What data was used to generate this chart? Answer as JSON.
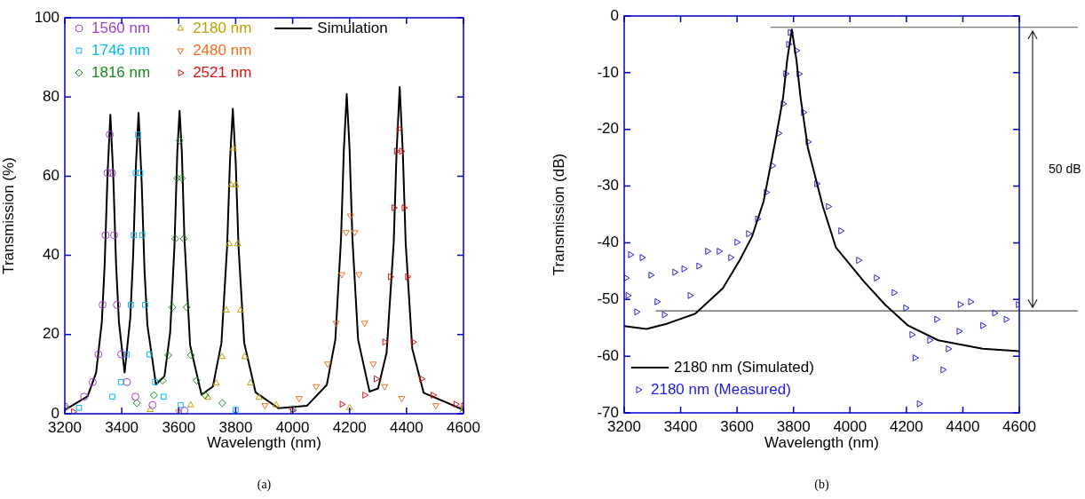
{
  "chart_data": [
    {
      "type": "scatter",
      "xlabel": "Wavelength (nm)",
      "ylabel": "Transmission (%)",
      "xlim": [
        3200,
        4600
      ],
      "ylim": [
        0,
        100
      ],
      "xticks": [
        3200,
        3400,
        3600,
        3800,
        4000,
        4200,
        4400,
        4600
      ],
      "yticks": [
        0,
        20,
        40,
        60,
        80,
        100
      ],
      "legend": "top left",
      "annotations": [
        "(a)"
      ],
      "series": [
        {
          "name": "1560 nm",
          "color": "#a040d0",
          "marker": "circle",
          "x": [
            3200,
            3268,
            3298,
            3318,
            3333,
            3343,
            3350,
            3358,
            3366,
            3373,
            3383,
            3398,
            3418,
            3448,
            3508,
            3620
          ],
          "values": [
            1.8,
            4.3,
            8,
            15,
            27.5,
            45.1,
            60.8,
            70.5,
            60.8,
            45.1,
            27.5,
            15,
            8,
            4.3,
            2.2,
            0.8
          ]
        },
        {
          "name": "1746 nm",
          "color": "#00b8f0",
          "marker": "square",
          "x": [
            3250,
            3367,
            3397,
            3417,
            3432,
            3442,
            3449,
            3457,
            3465,
            3472,
            3482,
            3497,
            3517,
            3547,
            3607,
            3800
          ],
          "values": [
            1.5,
            4.3,
            8,
            15,
            27.5,
            45.1,
            60.8,
            70.5,
            60.8,
            45.1,
            27.5,
            15,
            8,
            4.3,
            2.2,
            1
          ]
        },
        {
          "name": "1816 nm",
          "color": "#1a8a1a",
          "marker": "diamond",
          "x": [
            3200,
            3453,
            3513,
            3543,
            3563,
            3578,
            3588,
            3595,
            3603,
            3611,
            3618,
            3628,
            3643,
            3663,
            3693,
            3753,
            4000,
            4600
          ],
          "values": [
            1.5,
            2.7,
            4.7,
            8.4,
            14.8,
            26.9,
            44.2,
            59.5,
            69,
            59.5,
            44.2,
            26.9,
            14.8,
            8.4,
            4.7,
            2.7,
            1.2,
            0.5
          ]
        },
        {
          "name": "2180 nm",
          "color": "#c0a000",
          "marker": "triangle",
          "x": [
            3500,
            3642,
            3702,
            3732,
            3752,
            3767,
            3777,
            3784,
            3792,
            3800,
            3807,
            3817,
            3832,
            3852,
            3882,
            3942,
            4200,
            4600
          ],
          "values": [
            1,
            2.2,
            4.1,
            7.7,
            14.4,
            26.1,
            42.9,
            57.8,
            67,
            57.8,
            42.9,
            26.1,
            14.4,
            7.7,
            4.1,
            2.2,
            1.5,
            1.2
          ]
        },
        {
          "name": "2480 nm",
          "color": "#f07020",
          "marker": "triangle-down",
          "x": [
            3600,
            3903,
            4023,
            4083,
            4123,
            4153,
            4173,
            4188,
            4203,
            4218,
            4233,
            4253,
            4283,
            4323,
            4383,
            4503,
            4600
          ],
          "values": [
            0.5,
            2.1,
            3.9,
            6.9,
            12.6,
            22.9,
            35.2,
            45.8,
            50,
            45.8,
            35.2,
            22.9,
            12.6,
            6.9,
            3.9,
            2.1,
            1.5
          ]
        },
        {
          "name": "2521 nm",
          "color": "#e01010",
          "marker": "triangle-right",
          "x": [
            3230,
            4000,
            4173,
            4253,
            4293,
            4323,
            4343,
            4355,
            4364,
            4373,
            4382,
            4391,
            4403,
            4423,
            4453,
            4493,
            4573,
            4600
          ],
          "values": [
            0.5,
            0.8,
            2.4,
            4.7,
            8.8,
            18.1,
            34.6,
            52,
            66.3,
            72,
            66.3,
            52,
            34.6,
            18.1,
            8.8,
            4.7,
            2.4,
            2
          ]
        },
        {
          "name": "Simulation",
          "color": "#000000",
          "type": "line",
          "x": [
            3200,
            3280,
            3310,
            3330,
            3340,
            3350,
            3360,
            3370,
            3380,
            3390,
            3410,
            3430,
            3440,
            3450,
            3459,
            3470,
            3480,
            3490,
            3520,
            3550,
            3570,
            3585,
            3595,
            3603,
            3611,
            3620,
            3640,
            3680,
            3720,
            3750,
            3770,
            3780,
            3790,
            3800,
            3810,
            3830,
            3870,
            3950,
            4050,
            4120,
            4150,
            4170,
            4180,
            4190,
            4200,
            4210,
            4230,
            4270,
            4300,
            4330,
            4355,
            4365,
            4376,
            4387,
            4397,
            4420,
            4460,
            4600
          ],
          "values": [
            1,
            4.4,
            10.4,
            23.2,
            37.8,
            60.4,
            75.5,
            60.4,
            37.8,
            23.2,
            10.4,
            24.3,
            40,
            63.2,
            76,
            58.3,
            36.1,
            22.4,
            7.4,
            9.5,
            20.6,
            42.3,
            66,
            76.5,
            66,
            44.4,
            17.3,
            4.8,
            6.9,
            17.9,
            42.2,
            63.8,
            77,
            63.8,
            42.2,
            17.9,
            5.4,
            1.4,
            2,
            7.3,
            18.7,
            44.2,
            66.8,
            80.7,
            66.8,
            44.2,
            18.7,
            5.6,
            6.4,
            15.4,
            43.2,
            66,
            82.5,
            66,
            43.2,
            16.5,
            5.3,
            1
          ]
        }
      ]
    },
    {
      "type": "scatter",
      "xlabel": "Wavelength (nm)",
      "ylabel": "Transmission (dB)",
      "xlim": [
        3200,
        4600
      ],
      "ylim": [
        -70,
        0
      ],
      "xticks": [
        3200,
        3400,
        3600,
        3800,
        4000,
        4200,
        4400,
        4600
      ],
      "yticks": [
        -70,
        -60,
        -50,
        -40,
        -30,
        -20,
        -10,
        0
      ],
      "legend": "bottom left",
      "annotations": [
        "50 dB",
        "(b)"
      ],
      "ref_lines": [
        {
          "axis": "y",
          "value": -2,
          "color": "#555555"
        },
        {
          "axis": "y",
          "value": -52,
          "color": "#555555"
        }
      ],
      "series": [
        {
          "name": "2180 nm (Simulated)",
          "color": "#000000",
          "type": "line",
          "x": [
            3200,
            3279,
            3350,
            3452,
            3550,
            3609,
            3653,
            3694,
            3735,
            3763,
            3778,
            3794,
            3810,
            3825,
            3851,
            3904,
            3950,
            4049,
            4124,
            4206,
            4313,
            4470,
            4600
          ],
          "values": [
            -54.7,
            -55.2,
            -54.3,
            -52.5,
            -48,
            -43.1,
            -38.9,
            -32.7,
            -22.2,
            -14.4,
            -7.6,
            -2.4,
            -7.6,
            -14.4,
            -23.3,
            -33.6,
            -40.8,
            -46.8,
            -50.9,
            -54.6,
            -57.2,
            -58.7,
            -59.1
          ]
        },
        {
          "name": "2180 nm (Measured)",
          "color": "#2020e0",
          "marker": "triangle-right",
          "x": [
            3206,
            3213,
            3222,
            3244,
            3263,
            3294,
            3316,
            3342,
            3379,
            3411,
            3433,
            3464,
            3495,
            3536,
            3577,
            3599,
            3640,
            3672,
            3703,
            3725,
            3747,
            3763,
            3772,
            3782,
            3788,
            3810,
            3819,
            3835,
            3851,
            3882,
            3923,
            3967,
            4030,
            4093,
            4156,
            4197,
            4219,
            4230,
            4245,
            4282,
            4307,
            4329,
            4348,
            4386,
            4390,
            4427,
            4470,
            4512,
            4553,
            4596
          ],
          "values": [
            -46.2,
            -49.3,
            -42.1,
            -52.2,
            -42.6,
            -45.7,
            -50.4,
            -52.7,
            -45.2,
            -44.6,
            -49.3,
            -44.1,
            -41.5,
            -41.5,
            -42.6,
            -39.9,
            -38.4,
            -35.8,
            -31.1,
            -26.4,
            -20.7,
            -15.5,
            -10.2,
            -5,
            -2.9,
            -6.1,
            -10.2,
            -17,
            -22.2,
            -29.6,
            -33.6,
            -37.9,
            -43.1,
            -46.2,
            -48.8,
            -51.5,
            -56.2,
            -60.3,
            -68.4,
            -57.2,
            -53.5,
            -62.4,
            -58.7,
            -55.6,
            -50.9,
            -50.4,
            -54.6,
            -52.4,
            -53.5,
            -50.9
          ]
        }
      ]
    }
  ]
}
